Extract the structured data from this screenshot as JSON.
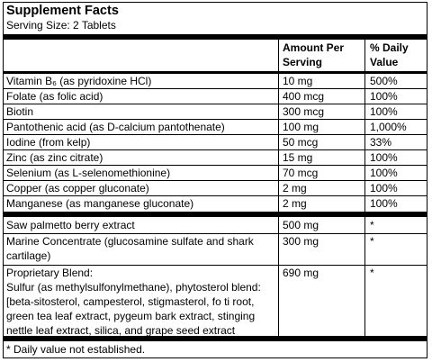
{
  "title": "Supplement Facts",
  "serving_size": "Serving Size: 2 Tablets",
  "headers": {
    "amount_line1": "Amount Per",
    "amount_line2": "Serving",
    "dv_line1": "% Daily",
    "dv_line2": "Value"
  },
  "vitamins": [
    {
      "name": "Vitamin B₆ (as pyridoxine HCl)",
      "amount": "10 mg",
      "dv": "500%"
    },
    {
      "name": "Folate (as folic acid)",
      "amount": "400 mcg",
      "dv": "100%"
    },
    {
      "name": "Biotin",
      "amount": "300 mcg",
      "dv": "100%"
    },
    {
      "name": "Pantothenic acid (as D-calcium pantothenate)",
      "amount": "100 mg",
      "dv": "1,000%"
    },
    {
      "name": "Iodine (from kelp)",
      "amount": "50 mcg",
      "dv": "33%"
    },
    {
      "name": "Zinc (as zinc citrate)",
      "amount": "15 mg",
      "dv": "100%"
    },
    {
      "name": "Selenium (as L-selenomethionine)",
      "amount": "70 mcg",
      "dv": "100%"
    },
    {
      "name": "Copper (as copper gluconate)",
      "amount": "2 mg",
      "dv": "100%"
    },
    {
      "name": "Manganese (as manganese gluconate)",
      "amount": "2 mg",
      "dv": "100%"
    }
  ],
  "saw_palmetto": {
    "name": "Saw palmetto berry extract",
    "amount": "500 mg",
    "dv": "*"
  },
  "marine": {
    "name": "Marine Concentrate (glucosamine sulfate and shark cartilage)",
    "amount": "300 mg",
    "dv": "*"
  },
  "proprietary": {
    "name": "Proprietary Blend:",
    "description": "Sulfur (as methylsulfonylmethane), phytosterol blend: [beta-sitosterol, campesterol, stigmasterol, fo ti root, green tea leaf extract, pygeum bark extract, stinging nettle leaf extract, silica, and grape seed extract",
    "amount": "690 mg",
    "dv": "*"
  },
  "footnote": "* Daily value not established."
}
